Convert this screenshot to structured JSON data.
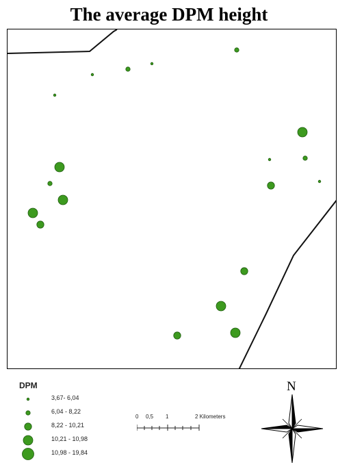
{
  "title": "The average DPM height",
  "legend": {
    "title": "DPM",
    "classes": [
      {
        "label": "3,67- 6,04",
        "size_class": 1
      },
      {
        "label": "6,04 - 8,22",
        "size_class": 2
      },
      {
        "label": "8,22 - 10,21",
        "size_class": 3
      },
      {
        "label": "10,21 - 10,98",
        "size_class": 4
      },
      {
        "label": "10,98 - 19,84",
        "size_class": 5
      }
    ]
  },
  "scale_bar": {
    "labels": [
      "0",
      "0,5",
      "1",
      "2 Kilometers"
    ]
  },
  "north_arrow": {
    "label": "N"
  },
  "colors": {
    "point_fill": "#3d9a1f",
    "point_stroke": "#1f5c10",
    "boundary": "#111111"
  },
  "points": [
    {
      "size_class": 2
    },
    {
      "size_class": 1
    },
    {
      "size_class": 1
    },
    {
      "size_class": 2
    },
    {
      "size_class": 1
    },
    {
      "size_class": 4
    },
    {
      "size_class": 1
    },
    {
      "size_class": 2
    },
    {
      "size_class": 4
    },
    {
      "size_class": 2
    },
    {
      "size_class": 1
    },
    {
      "size_class": 4
    },
    {
      "size_class": 3
    },
    {
      "size_class": 4
    },
    {
      "size_class": 3
    },
    {
      "size_class": 3
    },
    {
      "size_class": 4
    },
    {
      "size_class": 3
    },
    {
      "size_class": 4
    }
  ]
}
